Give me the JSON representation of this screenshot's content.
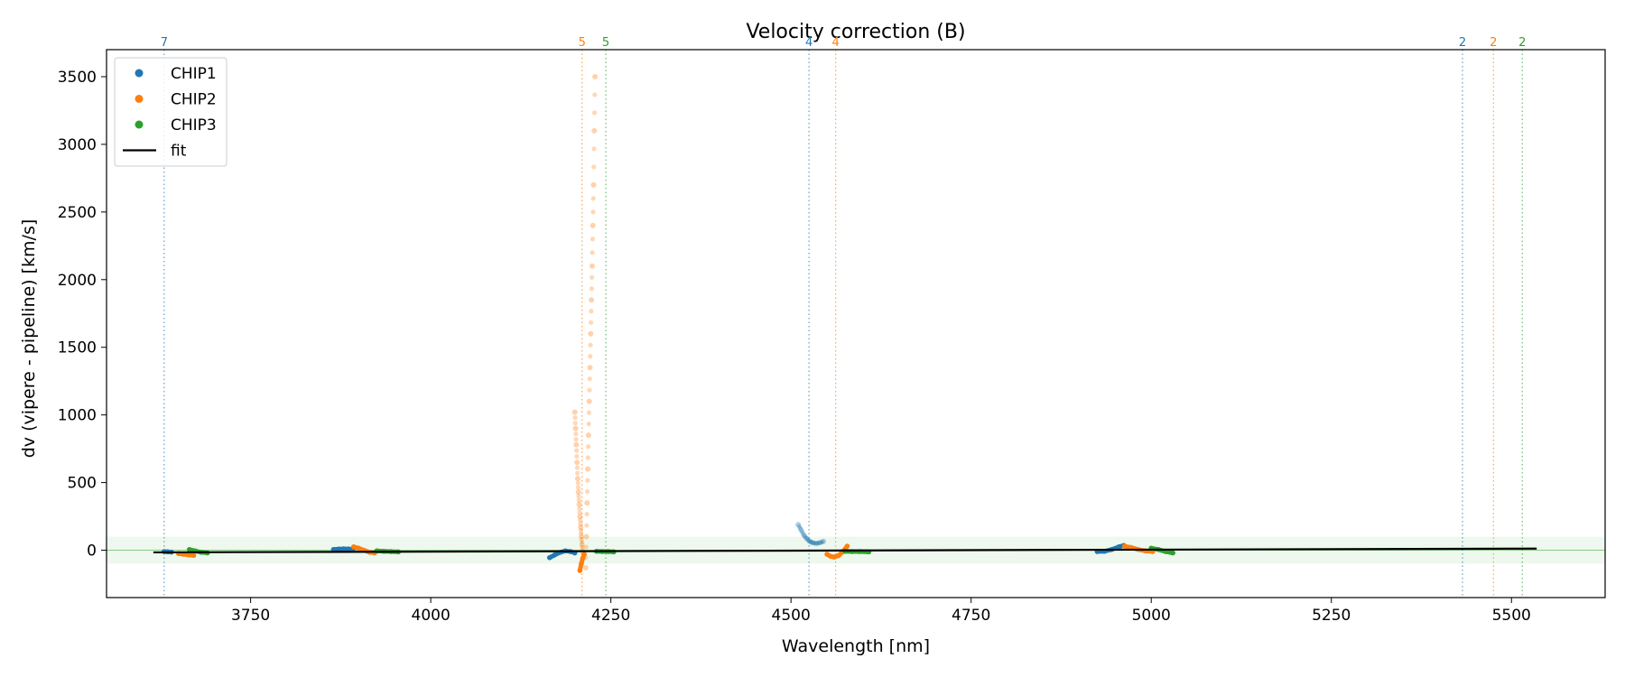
{
  "chart_data": {
    "type": "scatter",
    "title": "Velocity correction (B)",
    "xlabel": "Wavelength [nm]",
    "ylabel": "dv (vipere - pipeline) [km/s]",
    "xlim": [
      3550,
      5630
    ],
    "ylim": [
      -350,
      3700
    ],
    "xticks": [
      3750,
      4000,
      4250,
      4500,
      4750,
      5000,
      5250,
      5500
    ],
    "yticks": [
      0,
      500,
      1000,
      1500,
      2000,
      2500,
      3000,
      3500
    ],
    "grid": false,
    "legend_position": "top-left",
    "band": {
      "ymin": -100,
      "ymax": 100,
      "color": "#2ca02c"
    },
    "legend": [
      {
        "label": "CHIP1",
        "kind": "point",
        "color": "#1f77b4"
      },
      {
        "label": "CHIP2",
        "kind": "point",
        "color": "#ff7f0e"
      },
      {
        "label": "CHIP3",
        "kind": "point",
        "color": "#2ca02c"
      },
      {
        "label": "fit",
        "kind": "line",
        "color": "#000000"
      }
    ],
    "fit": {
      "x": [
        3615,
        5535
      ],
      "y": [
        -16,
        12
      ]
    },
    "order_markers": [
      {
        "x": 3630,
        "label": "7",
        "color": "#1f77b4"
      },
      {
        "x": 4210,
        "label": "5",
        "color": "#ff7f0e"
      },
      {
        "x": 4243,
        "label": "5",
        "color": "#2ca02c"
      },
      {
        "x": 4525,
        "label": "4",
        "color": "#1f77b4"
      },
      {
        "x": 4562,
        "label": "4",
        "color": "#ff7f0e"
      },
      {
        "x": 5432,
        "label": "2",
        "color": "#1f77b4"
      },
      {
        "x": 5475,
        "label": "2",
        "color": "#ff7f0e"
      },
      {
        "x": 5515,
        "label": "2",
        "color": "#2ca02c"
      }
    ],
    "series": [
      {
        "name": "CHIP1",
        "color": "#1f77b4",
        "segments": [
          {
            "x": [
              3630,
              3635,
              3640
            ],
            "y": [
              -10,
              -12,
              -14
            ]
          },
          {
            "x": [
              3865,
              3872,
              3879,
              3886,
              3892
            ],
            "y": [
              5,
              8,
              10,
              9,
              6
            ]
          },
          {
            "x": [
              4165,
              4172,
              4180,
              4187,
              4194,
              4200
            ],
            "y": [
              -55,
              -35,
              -15,
              -5,
              -10,
              -20
            ]
          },
          {
            "x": [
              4925,
              4935,
              4945,
              4955,
              4962
            ],
            "y": [
              -10,
              -8,
              5,
              25,
              35
            ]
          }
        ],
        "faded": [
          {
            "x": [
              4510,
              4514,
              4518,
              4522,
              4526,
              4530,
              4535,
              4540,
              4545
            ],
            "y": [
              190,
              150,
              110,
              85,
              65,
              55,
              50,
              55,
              65
            ]
          }
        ]
      },
      {
        "name": "CHIP2",
        "color": "#ff7f0e",
        "segments": [
          {
            "x": [
              3650,
              3657,
              3664,
              3671
            ],
            "y": [
              -25,
              -30,
              -35,
              -38
            ]
          },
          {
            "x": [
              3893,
              3900,
              3907,
              3915,
              3922
            ],
            "y": [
              25,
              15,
              0,
              -15,
              -20
            ]
          },
          {
            "x": [
              4207,
              4209,
              4211,
              4213
            ],
            "y": [
              -150,
              -100,
              -60,
              -30
            ]
          },
          {
            "x": [
              4550,
              4555,
              4560,
              4566,
              4572,
              4578
            ],
            "y": [
              -30,
              -45,
              -50,
              -40,
              -10,
              30
            ]
          },
          {
            "x": [
              4963,
              4972,
              4982,
              4992,
              5002
            ],
            "y": [
              30,
              20,
              5,
              -5,
              -10
            ]
          }
        ],
        "faded": [
          {
            "x": [
              4200,
              4201,
              4202,
              4203,
              4204,
              4205,
              4206,
              4207,
              4208,
              4209,
              4210,
              4211
            ],
            "y": [
              1020,
              900,
              780,
              650,
              530,
              430,
              340,
              250,
              170,
              100,
              40,
              -20
            ]
          },
          {
            "x": [
              4215,
              4216,
              4217,
              4218,
              4219,
              4220,
              4221,
              4222,
              4223,
              4224,
              4225,
              4226,
              4227,
              4228
            ],
            "y": [
              -130,
              100,
              350,
              600,
              850,
              1100,
              1350,
              1600,
              1850,
              2100,
              2400,
              2700,
              3100,
              3500
            ]
          }
        ]
      },
      {
        "name": "CHIP3",
        "color": "#2ca02c",
        "segments": [
          {
            "x": [
              3665,
              3673,
              3681,
              3690
            ],
            "y": [
              5,
              -5,
              -15,
              -20
            ]
          },
          {
            "x": [
              3925,
              3935,
              3945,
              3955
            ],
            "y": [
              -5,
              -8,
              -10,
              -12
            ]
          },
          {
            "x": [
              4230,
              4238,
              4246,
              4254
            ],
            "y": [
              -8,
              -10,
              -10,
              -12
            ]
          },
          {
            "x": [
              4575,
              4585,
              4595,
              4608
            ],
            "y": [
              -8,
              -10,
              -10,
              -12
            ]
          },
          {
            "x": [
              5000,
              5010,
              5020,
              5030
            ],
            "y": [
              15,
              5,
              -10,
              -20
            ]
          }
        ],
        "faded": []
      }
    ]
  }
}
